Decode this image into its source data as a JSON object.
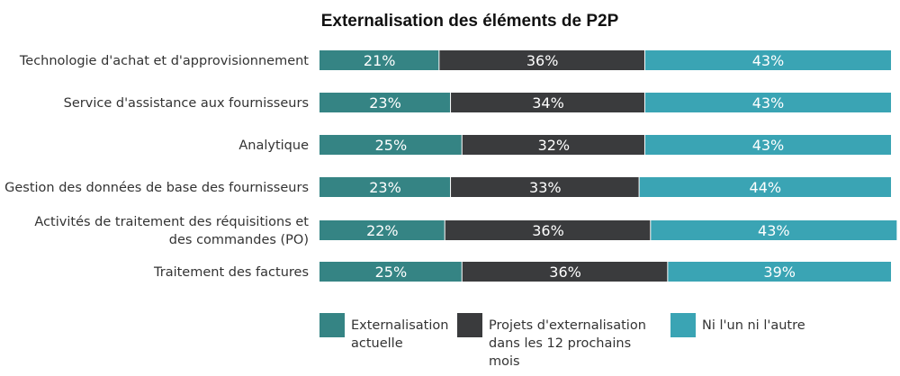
{
  "chart_data": {
    "type": "bar",
    "orientation": "horizontal",
    "stacked": true,
    "percent_stacked": true,
    "title": "Externalisation des éléments de P2P",
    "categories": [
      [
        "Technologie d'achat et d'approvisionnement"
      ],
      [
        "Service d'assistance aux fournisseurs"
      ],
      [
        "Analytique"
      ],
      [
        "Gestion des données de base des fournisseurs"
      ],
      [
        "Activités de traitement des réquisitions et",
        "des commandes (PO)"
      ],
      [
        "Traitement des factures"
      ]
    ],
    "series": [
      {
        "name": [
          "Externalisation",
          "actuelle"
        ],
        "color": "#358484",
        "values": [
          21,
          23,
          25,
          23,
          22,
          25
        ],
        "labels": [
          "21%",
          "23%",
          "25%",
          "23%",
          "22%",
          "25%"
        ]
      },
      {
        "name": [
          "Projets d'externalisation",
          "dans les 12 prochains",
          "mois"
        ],
        "color": "#3a3b3d",
        "values": [
          36,
          34,
          32,
          33,
          36,
          36
        ],
        "labels": [
          "36%",
          "34%",
          "32%",
          "33%",
          "36%",
          "36%"
        ]
      },
      {
        "name": [
          "Ni l'un ni l'autre"
        ],
        "color": "#3aa4b4",
        "values": [
          43,
          43,
          43,
          44,
          43,
          39
        ],
        "labels": [
          "43%",
          "43%",
          "43%",
          "44%",
          "43%",
          "39%"
        ]
      }
    ],
    "legend_position": "bottom",
    "grid": false
  }
}
